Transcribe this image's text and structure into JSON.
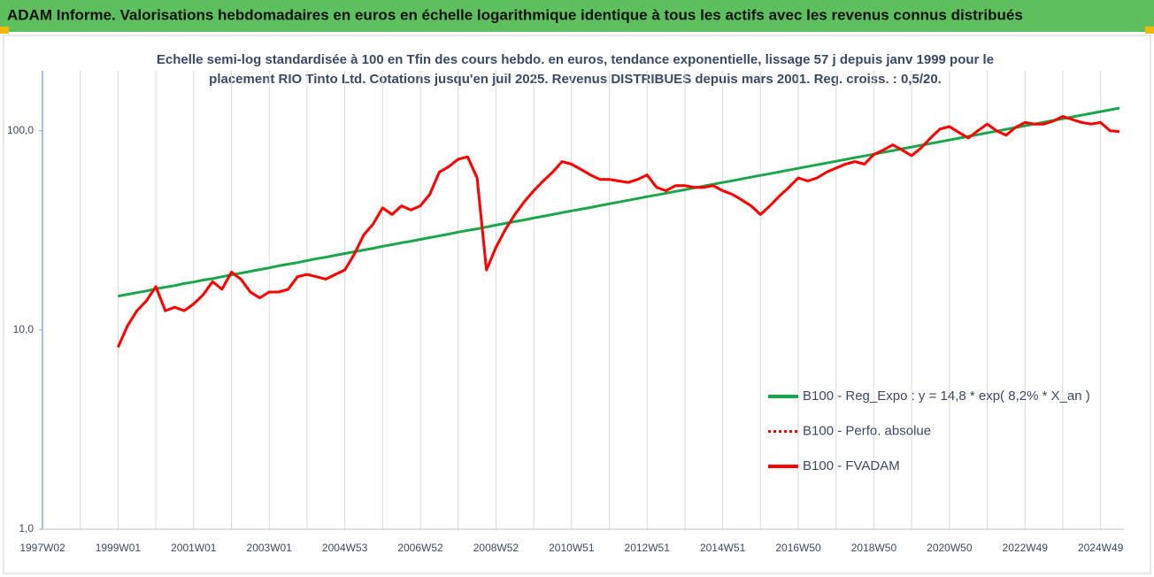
{
  "chart_data": {
    "type": "line",
    "title": "ADAM Informe. Valorisations hebdomadaires en euros en échelle logarithmique identique à tous les actifs avec les revenus connus distribués",
    "subtitle": [
      "Echelle semi-log standardisée à 100 en Tfin des cours hebdo. en euros, tendance exponentielle, lissage 57 j depuis janv 1999 pour le",
      "placement RIO Tinto Ltd. Cotations jusqu'en juil 2025. Revenus DISTRIBUES depuis mars 2001. Reg. croiss. : 0,5/20."
    ],
    "categories": [
      "1997W02",
      null,
      null,
      null,
      null,
      null,
      null,
      null,
      "1999W01",
      null,
      null,
      null,
      null,
      null,
      null,
      null,
      "2001W01",
      null,
      null,
      null,
      null,
      null,
      null,
      null,
      "2003W01",
      null,
      null,
      null,
      null,
      null,
      null,
      null,
      "2004W53",
      null,
      null,
      null,
      null,
      null,
      null,
      null,
      "2006W52",
      null,
      null,
      null,
      null,
      null,
      null,
      null,
      "2008W52",
      null,
      null,
      null,
      null,
      null,
      null,
      null,
      "2010W51",
      null,
      null,
      null,
      null,
      null,
      null,
      null,
      "2012W51",
      null,
      null,
      null,
      null,
      null,
      null,
      null,
      "2014W51",
      null,
      null,
      null,
      null,
      null,
      null,
      null,
      "2016W50",
      null,
      null,
      null,
      null,
      null,
      null,
      null,
      "2018W50",
      null,
      null,
      null,
      null,
      null,
      null,
      null,
      "2020W50",
      null,
      null,
      null,
      null,
      null,
      null,
      null,
      "2022W49",
      null,
      null,
      null,
      null,
      null,
      null,
      null,
      "2024W49",
      null,
      null
    ],
    "series": [
      {
        "name": "B100 - Reg_Expo : y = 14,8 * exp( 8,2% *  X_an )",
        "color": "#1aa64a",
        "style": "solid",
        "values": [
          null,
          null,
          null,
          null,
          null,
          null,
          null,
          null,
          14.8,
          15.1,
          15.4,
          15.7,
          16.1,
          16.4,
          16.7,
          17.1,
          17.4,
          17.8,
          18.1,
          18.5,
          18.9,
          19.3,
          19.7,
          20.1,
          20.5,
          21.0,
          21.4,
          21.8,
          22.3,
          22.8,
          23.2,
          23.7,
          24.2,
          24.7,
          25.2,
          25.7,
          26.3,
          26.8,
          27.4,
          27.9,
          28.5,
          29.1,
          29.7,
          30.3,
          31.0,
          31.6,
          32.2,
          32.9,
          33.6,
          34.3,
          35.0,
          35.7,
          36.5,
          37.2,
          38.0,
          38.8,
          39.6,
          40.4,
          41.2,
          42.1,
          43.0,
          43.9,
          44.8,
          45.7,
          46.7,
          47.6,
          48.6,
          49.6,
          50.6,
          51.7,
          52.8,
          53.9,
          55.0,
          56.1,
          57.3,
          58.5,
          59.7,
          60.9,
          62.2,
          63.5,
          64.8,
          66.1,
          67.5,
          68.9,
          70.3,
          71.8,
          73.3,
          74.8,
          76.3,
          77.9,
          79.5,
          81.2,
          82.8,
          84.6,
          86.3,
          88.1,
          89.9,
          91.8,
          93.7,
          95.6,
          97.6,
          99.6,
          101.7,
          103.8,
          105.9,
          108.1,
          110.4,
          112.7,
          115.0,
          117.4,
          119.8,
          122.3,
          124.8,
          127.4,
          130.0
        ]
      },
      {
        "name": "B100 - Perfo. absolue",
        "color": "#ff0000",
        "style": "dotted",
        "values": [
          null,
          null,
          null,
          null,
          null,
          null,
          null,
          null,
          8.2,
          10.5,
          12.5,
          14,
          16.5,
          12.5,
          13,
          12.5,
          13.5,
          15,
          17.5,
          16,
          19.5,
          18,
          15.5,
          14.5,
          15.5,
          15.5,
          16,
          18.5,
          19,
          18.5,
          18,
          19,
          20,
          24,
          30,
          34,
          41,
          38,
          42,
          40,
          42,
          48,
          62,
          66,
          72,
          74,
          58,
          20,
          26,
          32,
          38,
          44,
          50,
          56,
          62,
          70,
          68,
          64,
          60,
          57,
          57,
          56,
          55,
          57,
          60,
          52,
          50,
          53,
          53,
          52,
          52,
          53,
          50,
          48,
          45,
          42,
          38,
          42,
          47,
          52,
          58,
          56,
          58,
          62,
          65,
          68,
          70,
          68,
          76,
          80,
          85,
          80,
          75,
          82,
          92,
          102,
          105,
          98,
          92,
          100,
          108,
          100,
          95,
          104,
          110,
          108,
          108,
          112,
          118,
          114,
          110,
          108,
          110,
          100,
          99
        ]
      },
      {
        "name": "B100 - FVADAM",
        "color": "#ff0000",
        "style": "solid",
        "values": [
          null,
          null,
          null,
          null,
          null,
          null,
          null,
          null,
          8.2,
          10.5,
          12.5,
          14,
          16.5,
          12.5,
          13,
          12.5,
          13.5,
          15,
          17.5,
          16,
          19.5,
          18,
          15.5,
          14.5,
          15.5,
          15.5,
          16,
          18.5,
          19,
          18.5,
          18,
          19,
          20,
          24,
          30,
          34,
          41,
          38,
          42,
          40,
          42,
          48,
          62,
          66,
          72,
          74,
          58,
          20,
          26,
          32,
          38,
          44,
          50,
          56,
          62,
          70,
          68,
          64,
          60,
          57,
          57,
          56,
          55,
          57,
          60,
          52,
          50,
          53,
          53,
          52,
          52,
          53,
          50,
          48,
          45,
          42,
          38,
          42,
          47,
          52,
          58,
          56,
          58,
          62,
          65,
          68,
          70,
          68,
          76,
          80,
          85,
          80,
          75,
          82,
          92,
          102,
          105,
          98,
          92,
          100,
          108,
          100,
          95,
          104,
          110,
          108,
          108,
          112,
          118,
          114,
          110,
          108,
          110,
          100,
          99
        ]
      }
    ],
    "ylim": [
      1,
      200
    ],
    "ylog": true,
    "yticks": [
      {
        "value": 1,
        "label": "1,0"
      },
      {
        "value": 10,
        "label": "10,0"
      },
      {
        "value": 100,
        "label": "100,0"
      }
    ],
    "xgrid": true,
    "legend": "lower-right"
  }
}
